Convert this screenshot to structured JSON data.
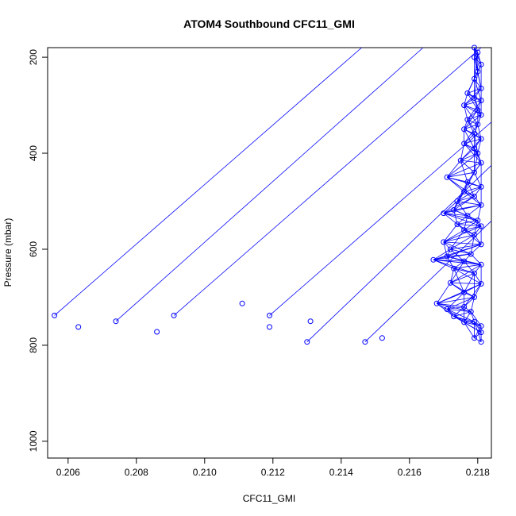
{
  "chart_data": {
    "type": "line",
    "title": "ATOM4 Southbound CFC11_GMI",
    "xlabel": "CFC11_GMI",
    "ylabel": "Pressure (mbar)",
    "xlim": [
      0.2054,
      0.2184
    ],
    "ylim": [
      1035,
      180
    ],
    "y_inverted": true,
    "x_ticks": [
      0.206,
      0.208,
      0.21,
      0.212,
      0.214,
      0.216,
      0.218
    ],
    "x_tick_labels": [
      "0.206",
      "0.208",
      "0.210",
      "0.212",
      "0.214",
      "0.216",
      "0.218"
    ],
    "y_ticks": [
      200,
      400,
      600,
      800,
      1000
    ],
    "y_tick_labels": [
      "200",
      "400",
      "600",
      "800",
      "1000"
    ],
    "series": [
      {
        "color": "#0000ff",
        "marker": "open-circle",
        "points": [
          [
            0.2179,
            180
          ],
          [
            0.218,
            190
          ],
          [
            0.2179,
            200
          ],
          [
            0.2181,
            215
          ],
          [
            0.218,
            230
          ],
          [
            0.2179,
            245
          ],
          [
            0.2181,
            265
          ],
          [
            0.2177,
            275
          ],
          [
            0.2179,
            285
          ],
          [
            0.2181,
            290
          ],
          [
            0.2176,
            300
          ],
          [
            0.218,
            310
          ],
          [
            0.2181,
            320
          ],
          [
            0.2177,
            330
          ],
          [
            0.218,
            340
          ],
          [
            0.2176,
            350
          ],
          [
            0.2179,
            360
          ],
          [
            0.2181,
            370
          ],
          [
            0.2176,
            380
          ],
          [
            0.2179,
            390
          ],
          [
            0.218,
            400
          ],
          [
            0.2175,
            415
          ],
          [
            0.2181,
            420
          ],
          [
            0.2179,
            440
          ],
          [
            0.2171,
            450
          ],
          [
            0.2177,
            460
          ],
          [
            0.2181,
            470
          ],
          [
            0.2176,
            480
          ],
          [
            0.2179,
            490
          ],
          [
            0.2174,
            500
          ],
          [
            0.2181,
            508
          ],
          [
            0.2173,
            518
          ],
          [
            0.217,
            525
          ],
          [
            0.2177,
            530
          ],
          [
            0.218,
            540
          ],
          [
            0.2174,
            548
          ],
          [
            0.2181,
            552
          ],
          [
            0.2176,
            560
          ],
          [
            0.2179,
            570
          ],
          [
            0.217,
            585
          ],
          [
            0.2181,
            590
          ],
          [
            0.2172,
            600
          ],
          [
            0.2178,
            610
          ],
          [
            0.2171,
            615
          ],
          [
            0.2167,
            622
          ],
          [
            0.2176,
            625
          ],
          [
            0.2181,
            632
          ],
          [
            0.2173,
            640
          ],
          [
            0.2179,
            650
          ],
          [
            0.2172,
            670
          ],
          [
            0.2181,
            672
          ],
          [
            0.2176,
            690
          ],
          [
            0.2179,
            700
          ],
          [
            0.2168,
            713
          ],
          [
            0.2176,
            720
          ],
          [
            0.2171,
            725
          ],
          [
            0.2178,
            730
          ],
          [
            0.2173,
            740
          ],
          [
            0.2176,
            752
          ],
          [
            0.2179,
            751
          ],
          [
            0.2181,
            760
          ],
          [
            0.2181,
            773
          ],
          [
            0.2179,
            785
          ],
          [
            0.2181,
            793
          ],
          [
            0.2056,
            738
          ],
          [
            0.2063,
            762
          ],
          [
            0.2074,
            750
          ],
          [
            0.2086,
            772
          ],
          [
            0.2091,
            738
          ],
          [
            0.2111,
            713
          ],
          [
            0.2119,
            738
          ],
          [
            0.2119,
            762
          ],
          [
            0.213,
            793
          ],
          [
            0.2131,
            750
          ],
          [
            0.2147,
            793
          ],
          [
            0.2152,
            785
          ]
        ]
      }
    ]
  }
}
